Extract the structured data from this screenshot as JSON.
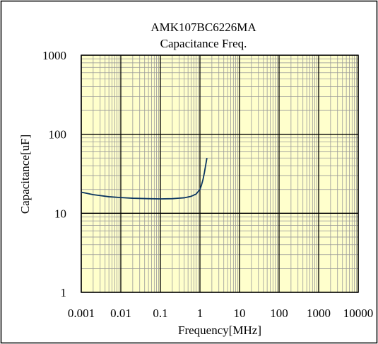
{
  "chart_data": {
    "type": "line",
    "title": "AMK107BC6226MA",
    "subtitle": "Capacitance Freq.",
    "xlabel": "Frequency[MHz]",
    "ylabel": "Capacitance[uF]",
    "xscale": "log",
    "yscale": "log",
    "xlim": [
      0.001,
      10000
    ],
    "ylim": [
      1,
      1000
    ],
    "x_tick_labels": [
      "0.001",
      "0.01",
      "0.1",
      "1",
      "10",
      "100",
      "1000",
      "10000"
    ],
    "y_tick_labels": [
      "1",
      "10",
      "100",
      "1000"
    ],
    "grid": true,
    "legend": "none",
    "colors": {
      "plot_background": "#ffffcc",
      "series_line": "#0a3560",
      "major_grid": "#000000",
      "minor_grid": "#9a9a9a"
    },
    "series": [
      {
        "x": [
          0.001,
          0.002,
          0.005,
          0.01,
          0.02,
          0.05,
          0.1,
          0.2,
          0.4,
          0.6,
          0.8,
          1.0,
          1.1,
          1.2,
          1.3,
          1.4,
          1.5
        ],
        "y": [
          18.5,
          17.2,
          16.2,
          15.8,
          15.5,
          15.3,
          15.2,
          15.3,
          15.7,
          16.4,
          17.5,
          20.0,
          23.0,
          27.0,
          33.0,
          41.0,
          50.0
        ]
      }
    ]
  }
}
